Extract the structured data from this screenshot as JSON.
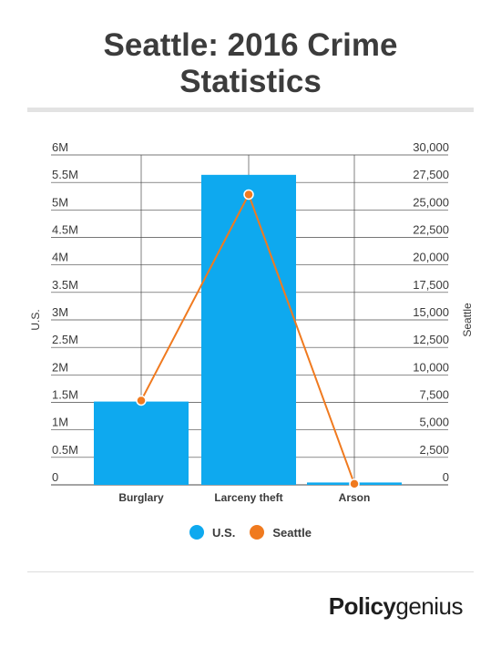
{
  "header": {
    "title_line1": "Seattle: 2016 Crime",
    "title_line2": "Statistics"
  },
  "colors": {
    "us": "#0ea9ef",
    "seattle": "#f07a1f",
    "grid": "#4a4a4a",
    "text": "#3a3a3a"
  },
  "chart_data": {
    "type": "bar",
    "categories": [
      "Burglary",
      "Larceny theft",
      "Arson"
    ],
    "series": [
      {
        "name": "U.S.",
        "type": "bar",
        "axis": "left",
        "values": [
          1515000,
          5638000,
          43000
        ]
      },
      {
        "name": "Seattle",
        "type": "line",
        "axis": "right",
        "values": [
          7670,
          26400,
          90
        ]
      }
    ],
    "y_left": {
      "label": "U.S.",
      "ylim": [
        0,
        6000000
      ],
      "ticks": [
        0,
        500000,
        1000000,
        1500000,
        2000000,
        2500000,
        3000000,
        3500000,
        4000000,
        4500000,
        5000000,
        5500000,
        6000000
      ],
      "tick_labels": [
        "0",
        "0.5M",
        "1M",
        "1.5M",
        "2M",
        "2.5M",
        "3M",
        "3.5M",
        "4M",
        "4.5M",
        "5M",
        "5.5M",
        "6M"
      ]
    },
    "y_right": {
      "label": "Seattle",
      "ylim": [
        0,
        30000
      ],
      "ticks": [
        0,
        2500,
        5000,
        7500,
        10000,
        12500,
        15000,
        17500,
        20000,
        22500,
        25000,
        27500,
        30000
      ],
      "tick_labels": [
        "0",
        "2,500",
        "5,000",
        "7,500",
        "10,000",
        "12,500",
        "15,000",
        "17,500",
        "20,000",
        "22,500",
        "25,000",
        "27,500",
        "30,000"
      ]
    },
    "grid": true,
    "legend_position": "bottom"
  },
  "legend": {
    "us_label": "U.S.",
    "seattle_label": "Seattle"
  },
  "brand": {
    "part1": "Policy",
    "part2": "genius"
  }
}
